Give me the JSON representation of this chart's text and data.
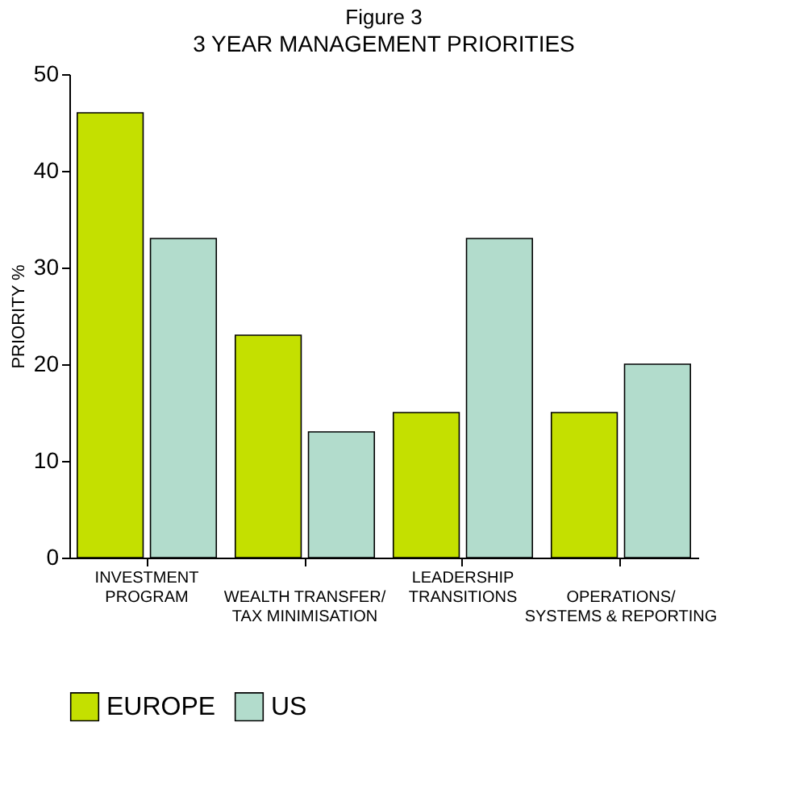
{
  "chart_data": {
    "type": "bar",
    "title": "Figure 3",
    "subtitle": "3 YEAR MANAGEMENT PRIORITIES",
    "ylabel": "PRIORITY %",
    "categories": [
      "INVESTMENT PROGRAM",
      "WEALTH TRANSFER/ TAX MINIMISATION",
      "LEADERSHIP TRANSITIONS",
      "OPERATIONS/ SYSTEMS & REPORTING"
    ],
    "series": [
      {
        "name": "EUROPE",
        "color": "#c4e000",
        "values": [
          46,
          23,
          15,
          15
        ]
      },
      {
        "name": "US",
        "color": "#b2dccc",
        "values": [
          33,
          13,
          33,
          20
        ]
      }
    ],
    "ylim": [
      0,
      50
    ],
    "yticks": [
      0,
      10,
      20,
      30,
      40,
      50
    ],
    "grid": false,
    "legend": "bottom"
  }
}
